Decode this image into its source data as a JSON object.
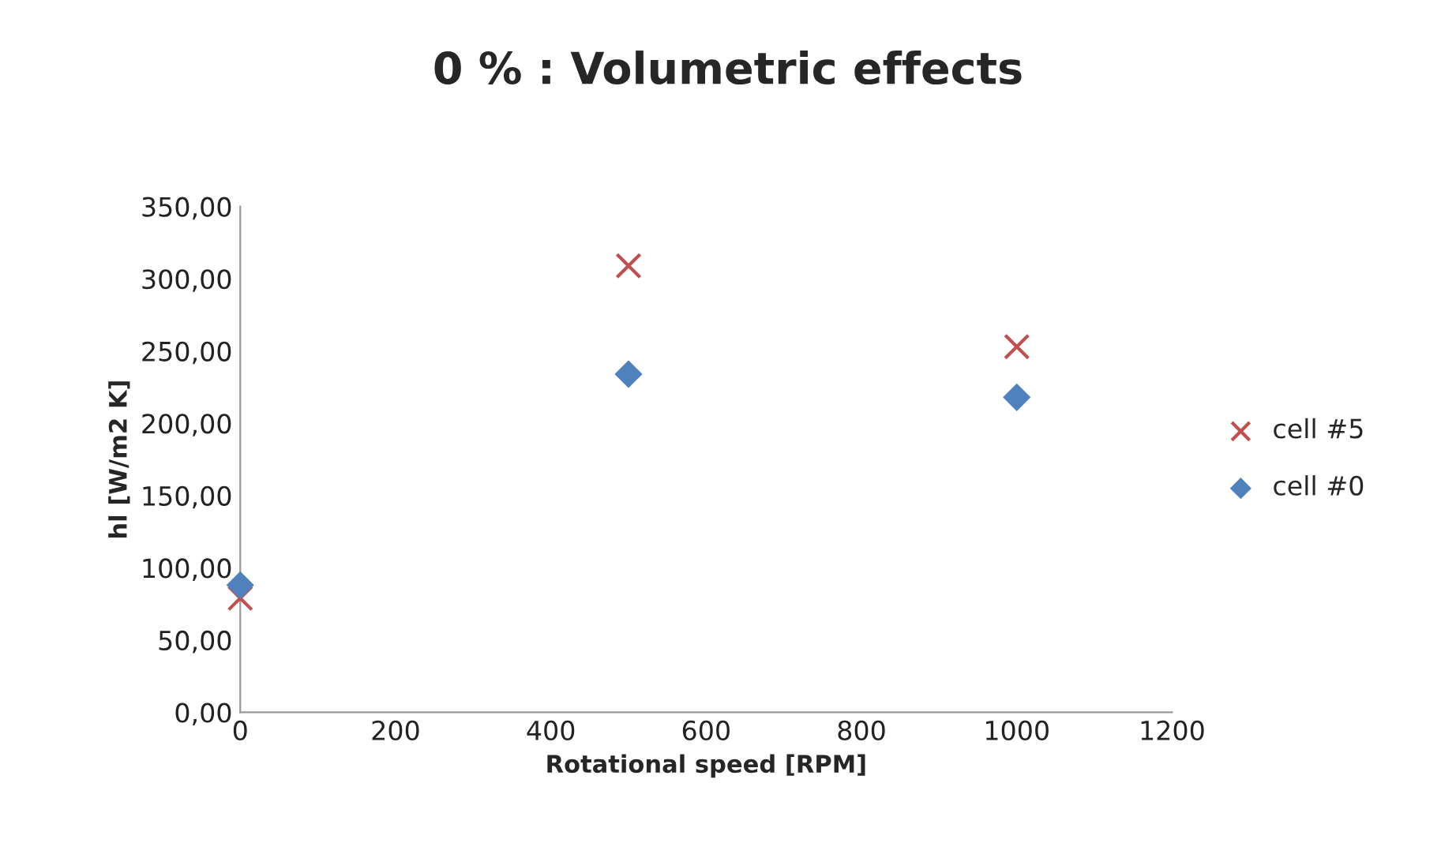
{
  "chart_data": {
    "type": "scatter",
    "title": "0 % : Volumetric effects",
    "xlabel": "Rotational speed [RPM]",
    "ylabel": "hl [W/m2 K]",
    "series": [
      {
        "name": "cell #5",
        "color": "#c0504d",
        "marker": "cross",
        "x": [
          0,
          500,
          1000
        ],
        "values": [
          79,
          309,
          253
        ]
      },
      {
        "name": "cell #0",
        "color": "#4f81bd",
        "marker": "diamond",
        "x": [
          0,
          500,
          1000
        ],
        "values": [
          88,
          234,
          218
        ]
      }
    ],
    "xlim": [
      0,
      1200
    ],
    "xticks": [
      0,
      200,
      400,
      600,
      800,
      1000,
      1200
    ],
    "ylim": [
      0,
      350
    ],
    "yticks": [
      {
        "value": 0,
        "label": "0,00"
      },
      {
        "value": 50,
        "label": "50,00"
      },
      {
        "value": 100,
        "label": "100,00"
      },
      {
        "value": 150,
        "label": "150,00"
      },
      {
        "value": 200,
        "label": "200,00"
      },
      {
        "value": 250,
        "label": "250,00"
      },
      {
        "value": 300,
        "label": "300,00"
      },
      {
        "value": 350,
        "label": "350,00"
      }
    ],
    "grid": false,
    "legend": "right"
  }
}
